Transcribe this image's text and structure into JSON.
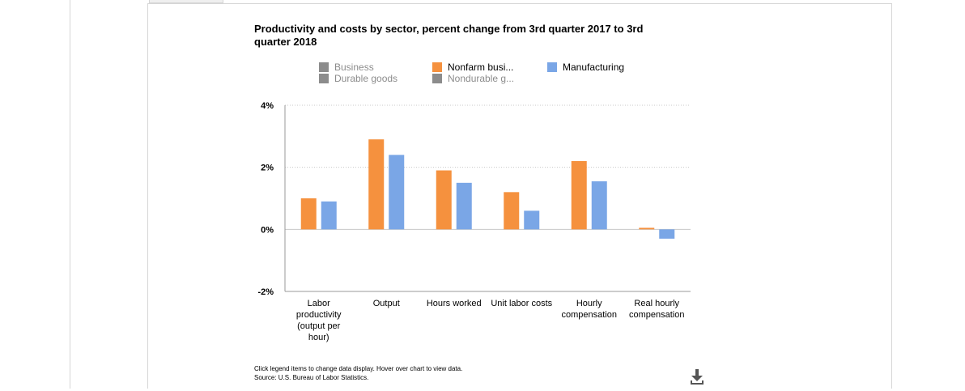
{
  "chart_data": {
    "type": "bar",
    "title": "Productivity and costs by sector, percent change from 3rd quarter 2017 to 3rd quarter 2018",
    "categories": [
      "Labor productivity (output per hour)",
      "Output",
      "Hours worked",
      "Unit labor costs",
      "Hourly compensation",
      "Real hourly compensation"
    ],
    "category_lines": [
      [
        "Labor",
        "productivity",
        "(output per",
        "hour)"
      ],
      [
        "Output"
      ],
      [
        "Hours worked"
      ],
      [
        "Unit labor costs"
      ],
      [
        "Hourly",
        "compensation"
      ],
      [
        "Real hourly",
        "compensation"
      ]
    ],
    "series": [
      {
        "name": "Nonfarm business",
        "values": [
          1.0,
          2.9,
          1.9,
          1.2,
          2.2,
          0.05
        ]
      },
      {
        "name": "Manufacturing",
        "values": [
          0.9,
          2.4,
          1.5,
          0.6,
          1.55,
          -0.3
        ]
      }
    ],
    "yticks": [
      "4%",
      "2%",
      "0%",
      "-2%"
    ],
    "ytick_values": [
      4,
      2,
      0,
      -2
    ],
    "ylim": [
      -2,
      4
    ],
    "grid": true,
    "legend_position": "top",
    "legend": [
      {
        "label": "Business",
        "active": false,
        "color": "#8c8c8c"
      },
      {
        "label": "Nonfarm busi...",
        "active": true,
        "color": "#f5913e"
      },
      {
        "label": "Manufacturing",
        "active": true,
        "color": "#7aa6e6"
      },
      {
        "label": "Durable goods",
        "active": false,
        "color": "#8c8c8c"
      },
      {
        "label": "Nondurable g...",
        "active": false,
        "color": "#8c8c8c"
      }
    ],
    "colors": {
      "nonfarm": "#f5913e",
      "manufacturing": "#7aa6e6",
      "inactive": "#8c8c8c"
    }
  },
  "footnote": {
    "line1": "Click legend items to change data display. Hover over chart to view data.",
    "line2": "Source: U.S. Bureau of Labor Statistics."
  },
  "icons": {
    "download": "download-icon"
  }
}
